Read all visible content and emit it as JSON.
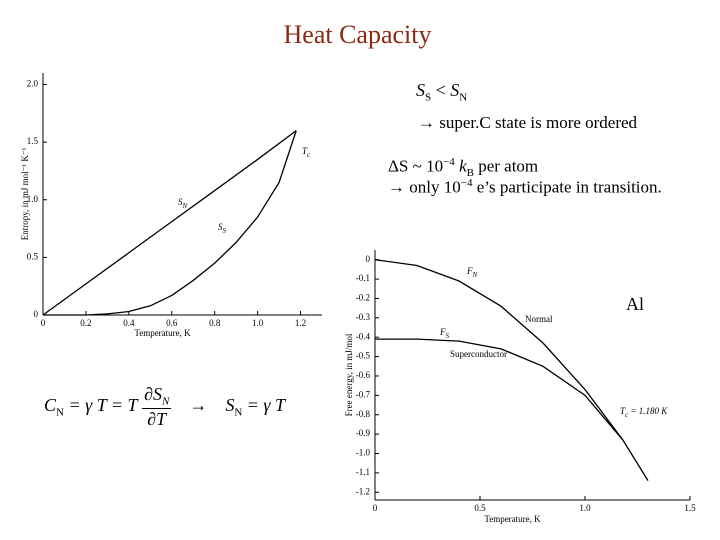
{
  "title": "Heat Capacity",
  "notes": {
    "order": {
      "s1": "S",
      "s1_sub": "S",
      "lt": " < ",
      "s2": "S",
      "s2_sub": "N"
    },
    "order_arrow": "→ super.C state is more ordered",
    "delta": {
      "a": "ΔS ~ 10",
      "a_sup": "−4",
      "b": " k",
      "b_sub": "B",
      "c": " per atom"
    },
    "participate": {
      "a": "→ only 10",
      "a_sup": "−4",
      "b": " e’s participate in transition."
    },
    "material": "Al"
  },
  "equation": {
    "c": "C",
    "c_sub": "N",
    "mid": " = γ T  = T",
    "num": "∂S",
    "num_sub": "N",
    "den": "∂T",
    "arrow": "→",
    "s": "S",
    "s_sub": "N",
    "end": " = γ T"
  },
  "chart_data": [
    {
      "type": "line",
      "xlabel": "Temperature, K",
      "ylabel": "Entropy, in mJ mol⁻¹ K⁻¹",
      "xlim": [
        0,
        1.3
      ],
      "ylim": [
        0,
        2.1
      ],
      "xticks": [
        0,
        0.2,
        0.4,
        0.6,
        0.8,
        {
          "value": 1.0,
          "label": "1.0"
        },
        1.2
      ],
      "yticks": [
        0,
        0.5,
        {
          "value": 1.0,
          "label": "1.0"
        },
        1.5,
        {
          "value": 2.0,
          "label": "2.0"
        }
      ],
      "series": [
        {
          "name": "S",
          "sub": "N",
          "color": "#000000",
          "x": [
            0,
            0.2,
            0.4,
            0.6,
            0.8,
            1.0,
            1.18
          ],
          "y": [
            0,
            0.27,
            0.54,
            0.81,
            1.08,
            1.35,
            1.6
          ]
        },
        {
          "name": "S",
          "sub": "S",
          "color": "#000000",
          "x": [
            0,
            0.2,
            0.3,
            0.4,
            0.5,
            0.6,
            0.7,
            0.8,
            0.9,
            1.0,
            1.1,
            1.18
          ],
          "y": [
            0,
            0,
            0.01,
            0.03,
            0.08,
            0.17,
            0.3,
            0.45,
            0.63,
            0.85,
            1.15,
            1.6
          ]
        }
      ],
      "annotations": [
        {
          "text": "T",
          "sub": "c"
        }
      ]
    },
    {
      "type": "line",
      "xlabel": "Temperature, K",
      "ylabel": "Free energy, in mJ/mol",
      "xlim": [
        0,
        1.5
      ],
      "ylim": [
        -1.24,
        0.05
      ],
      "xticks": [
        0,
        0.5,
        {
          "value": 1.0,
          "label": "1.0"
        },
        1.5
      ],
      "yticks": [
        0,
        -0.1,
        -0.2,
        -0.3,
        -0.4,
        -0.5,
        -0.6,
        -0.7,
        -0.8,
        -0.9,
        {
          "value": -1.0,
          "label": "-1.0"
        },
        -1.1,
        -1.2
      ],
      "series": [
        {
          "name": "F",
          "sub": "N",
          "color": "#000000",
          "x": [
            0,
            0.2,
            0.4,
            0.6,
            0.8,
            1.0,
            1.18,
            1.3
          ],
          "y": [
            0,
            -0.03,
            -0.11,
            -0.24,
            -0.43,
            -0.67,
            -0.93,
            -1.14
          ]
        },
        {
          "name": "F",
          "sub": "S",
          "color": "#000000",
          "x": [
            0,
            0.2,
            0.4,
            0.6,
            0.8,
            1.0,
            1.18
          ],
          "y": [
            -0.41,
            -0.41,
            -0.42,
            -0.46,
            -0.55,
            -0.7,
            -0.93
          ]
        }
      ],
      "annotations": [
        {
          "text": "Normal"
        },
        {
          "text": "Superconductor"
        },
        {
          "text": "T",
          "sub": "c",
          "rest": " = 1.180 K"
        }
      ]
    }
  ]
}
